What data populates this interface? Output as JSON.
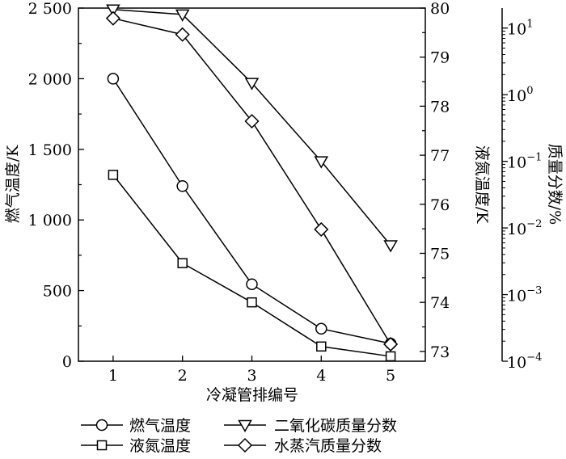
{
  "chart_data": {
    "type": "line",
    "x": [
      1,
      2,
      3,
      4,
      5
    ],
    "xlabel": "冷凝管排编号",
    "ylabel_left": "燃气温度/K",
    "ylabel_middle": "液氮温度/K",
    "ylabel_right": "质量分数/%",
    "xlim": [
      0.5,
      5.5
    ],
    "ylim_left": [
      0,
      2500
    ],
    "ylim_middle": [
      72.8,
      80
    ],
    "ylim_right_log10": [
      -4,
      1.3
    ],
    "grid": false,
    "legend_position": "bottom",
    "x_ticks": [
      {
        "value": 1,
        "label": "1"
      },
      {
        "value": 2,
        "label": "2"
      },
      {
        "value": 3,
        "label": "3"
      },
      {
        "value": 4,
        "label": "4"
      },
      {
        "value": 5,
        "label": "5"
      }
    ],
    "y_left_ticks": [
      {
        "value": 0,
        "label": "0"
      },
      {
        "value": 500,
        "label": "500"
      },
      {
        "value": 1000,
        "label": "1 000"
      },
      {
        "value": 1500,
        "label": "1 500"
      },
      {
        "value": 2000,
        "label": "2 000"
      },
      {
        "value": 2500,
        "label": "2 500"
      }
    ],
    "y_middle_ticks": [
      {
        "value": 73,
        "label": "73"
      },
      {
        "value": 74,
        "label": "74"
      },
      {
        "value": 75,
        "label": "75"
      },
      {
        "value": 76,
        "label": "76"
      },
      {
        "value": 77,
        "label": "77"
      },
      {
        "value": 78,
        "label": "78"
      },
      {
        "value": 79,
        "label": "79"
      },
      {
        "value": 80,
        "label": "80"
      }
    ],
    "y_right_ticks": [
      {
        "value": 0.0001,
        "base": "10",
        "exp": "−4"
      },
      {
        "value": 0.001,
        "base": "10",
        "exp": "−3"
      },
      {
        "value": 0.01,
        "base": "10",
        "exp": "−2"
      },
      {
        "value": 0.1,
        "base": "10",
        "exp": "−1"
      },
      {
        "value": 1,
        "base": "10",
        "exp": "0"
      },
      {
        "value": 10,
        "base": "10",
        "exp": "1"
      }
    ],
    "series": [
      {
        "name": "燃气温度",
        "axis": "left",
        "marker": "circle",
        "values": [
          2000,
          1240,
          545,
          230,
          125
        ]
      },
      {
        "name": "液氮温度",
        "axis": "middle",
        "marker": "square",
        "values": [
          76.6,
          74.8,
          74.0,
          73.1,
          72.9
        ]
      },
      {
        "name": "二氧化碳质量分数",
        "axis": "right",
        "marker": "triangle-down",
        "values": [
          19,
          16,
          1.5,
          0.1,
          0.0055
        ]
      },
      {
        "name": "水蒸汽质量分数",
        "axis": "right",
        "marker": "diamond",
        "values": [
          14,
          8.0,
          0.4,
          0.0095,
          0.00018
        ]
      }
    ]
  }
}
